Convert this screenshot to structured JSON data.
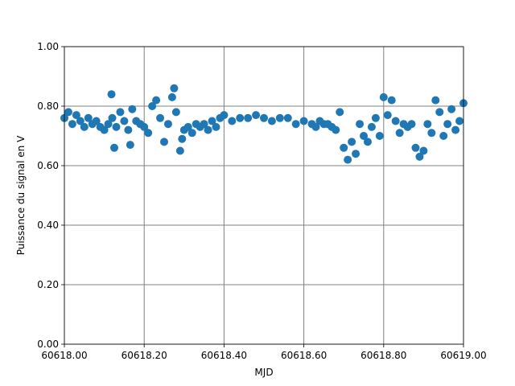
{
  "chart_data": {
    "type": "scatter",
    "title": "",
    "xlabel": "MJD",
    "ylabel": "Puissance du signal en V",
    "xlim": [
      60618.0,
      60619.0
    ],
    "ylim": [
      0.0,
      1.0
    ],
    "grid": true,
    "legend": "none",
    "colors": {
      "marker": "#1f77b4",
      "grid": "#808080"
    },
    "x_ticks": [
      "60618.00",
      "60618.20",
      "60618.40",
      "60618.60",
      "60618.80",
      "60619.00"
    ],
    "y_ticks": [
      "0.00",
      "0.20",
      "0.40",
      "0.60",
      "0.80",
      "1.00"
    ],
    "series": [
      {
        "x": [
          60618.0,
          60618.01,
          60618.02,
          60618.03,
          60618.04,
          60618.05,
          60618.06,
          60618.07,
          60618.08,
          60618.09,
          60618.1,
          60618.11,
          60618.118,
          60618.12,
          60618.125,
          60618.13,
          60618.14,
          60618.15,
          60618.16,
          60618.165,
          60618.17,
          60618.18,
          60618.19,
          60618.2,
          60618.21,
          60618.22,
          60618.23,
          60618.24,
          60618.25,
          60618.26,
          60618.27,
          60618.275,
          60618.28,
          60618.29,
          60618.295,
          60618.3,
          60618.31,
          60618.32,
          60618.33,
          60618.34,
          60618.35,
          60618.36,
          60618.37,
          60618.38,
          60618.39,
          60618.4,
          60618.42,
          60618.44,
          60618.46,
          60618.48,
          60618.5,
          60618.52,
          60618.54,
          60618.56,
          60618.58,
          60618.6,
          60618.62,
          60618.63,
          60618.64,
          60618.65,
          60618.66,
          60618.67,
          60618.68,
          60618.69,
          60618.7,
          60618.71,
          60618.72,
          60618.73,
          60618.74,
          60618.75,
          60618.76,
          60618.77,
          60618.78,
          60618.79,
          60618.8,
          60618.81,
          60618.82,
          60618.83,
          60618.84,
          60618.85,
          60618.86,
          60618.87,
          60618.88,
          60618.89,
          60618.9,
          60618.91,
          60618.92,
          60618.93,
          60618.94,
          60618.95,
          60618.96,
          60618.97,
          60618.98,
          60618.99,
          60619.0
        ],
        "y": [
          0.76,
          0.78,
          0.74,
          0.77,
          0.75,
          0.73,
          0.76,
          0.74,
          0.75,
          0.73,
          0.72,
          0.74,
          0.84,
          0.76,
          0.66,
          0.73,
          0.78,
          0.75,
          0.72,
          0.67,
          0.79,
          0.75,
          0.74,
          0.73,
          0.71,
          0.8,
          0.82,
          0.76,
          0.68,
          0.74,
          0.83,
          0.86,
          0.78,
          0.65,
          0.69,
          0.72,
          0.73,
          0.71,
          0.74,
          0.73,
          0.74,
          0.72,
          0.75,
          0.73,
          0.76,
          0.77,
          0.75,
          0.76,
          0.76,
          0.77,
          0.76,
          0.75,
          0.76,
          0.76,
          0.74,
          0.75,
          0.74,
          0.73,
          0.75,
          0.74,
          0.74,
          0.73,
          0.72,
          0.78,
          0.66,
          0.62,
          0.68,
          0.64,
          0.74,
          0.7,
          0.68,
          0.73,
          0.76,
          0.7,
          0.83,
          0.77,
          0.82,
          0.75,
          0.71,
          0.74,
          0.73,
          0.74,
          0.66,
          0.63,
          0.65,
          0.74,
          0.71,
          0.82,
          0.78,
          0.7,
          0.74,
          0.79,
          0.72,
          0.75,
          0.81
        ]
      }
    ]
  }
}
